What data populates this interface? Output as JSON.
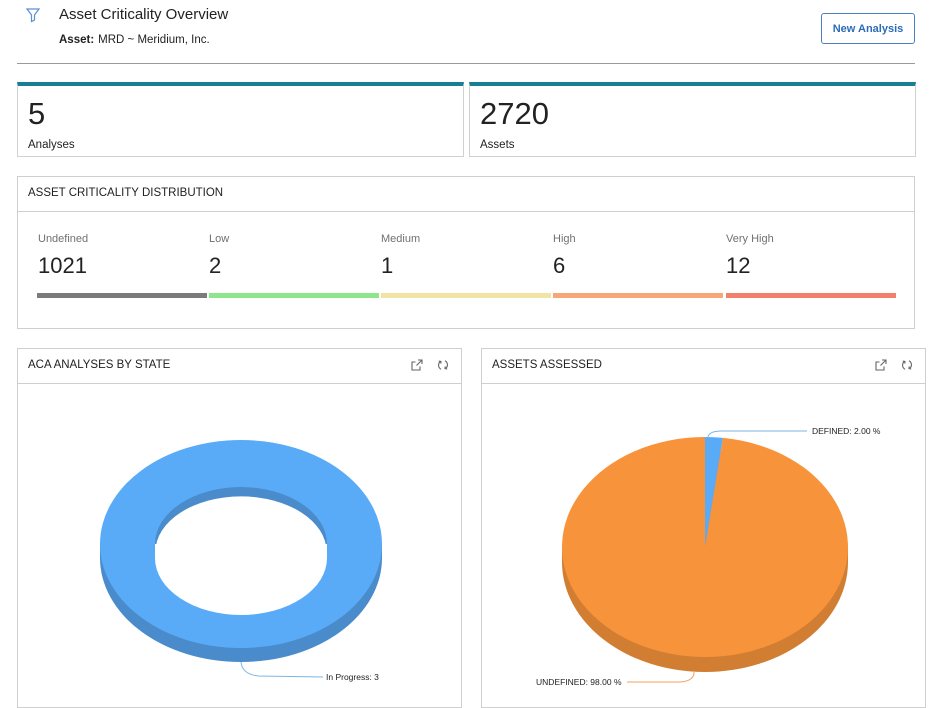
{
  "header": {
    "title": "Asset Criticality Overview",
    "asset_label": "Asset:",
    "asset_value": "MRD ~ Meridium, Inc.",
    "new_analysis_label": "New Analysis"
  },
  "kpis": [
    {
      "value": "5",
      "label": "Analyses"
    },
    {
      "value": "2720",
      "label": "Assets"
    }
  ],
  "distribution": {
    "title": "ASSET CRITICALITY DISTRIBUTION",
    "items": [
      {
        "label": "Undefined",
        "value": "1021",
        "color": "#7b7b7b"
      },
      {
        "label": "Low",
        "value": "2",
        "color": "#8ee68c"
      },
      {
        "label": "Medium",
        "value": "1",
        "color": "#f1e4a4"
      },
      {
        "label": "High",
        "value": "6",
        "color": "#f7a777"
      },
      {
        "label": "Very High",
        "value": "12",
        "color": "#f27e6c"
      }
    ]
  },
  "panels": {
    "analyses_by_state": {
      "title": "ACA ANALYSES BY STATE"
    },
    "assets_assessed": {
      "title": "ASSETS ASSESSED"
    }
  },
  "icons": {
    "filter": "filter-icon",
    "expand": "expand-icon",
    "refresh": "refresh-icon"
  },
  "chart_data": [
    {
      "type": "pie",
      "variant": "donut",
      "slices": [
        {
          "label": "In Progress",
          "value": 3,
          "display": "In Progress: 3",
          "color": "#5aabf7"
        }
      ]
    },
    {
      "type": "pie",
      "slices": [
        {
          "label": "DEFINED",
          "value": 2.0,
          "display": "DEFINED: 2.00 %",
          "color": "#5aabf7"
        },
        {
          "label": "UNDEFINED",
          "value": 98.0,
          "display": "UNDEFINED: 98.00 %",
          "color": "#f7943b"
        }
      ]
    }
  ]
}
